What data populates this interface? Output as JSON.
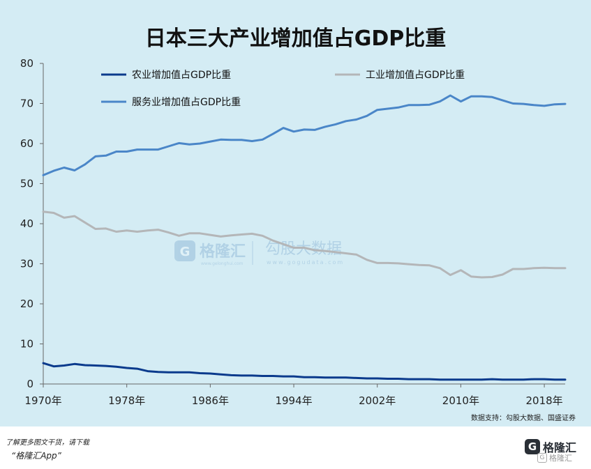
{
  "chart_data": {
    "type": "line",
    "title": "日本三大产业增加值占GDP比重",
    "x": [
      1970,
      1971,
      1972,
      1973,
      1974,
      1975,
      1976,
      1977,
      1978,
      1979,
      1980,
      1981,
      1982,
      1983,
      1984,
      1985,
      1986,
      1987,
      1988,
      1989,
      1990,
      1991,
      1992,
      1993,
      1994,
      1995,
      1996,
      1997,
      1998,
      1999,
      2000,
      2001,
      2002,
      2003,
      2004,
      2005,
      2006,
      2007,
      2008,
      2009,
      2010,
      2011,
      2012,
      2013,
      2014,
      2015,
      2016,
      2017,
      2018,
      2019,
      2020
    ],
    "x_ticks": [
      1970,
      1978,
      1986,
      1994,
      2002,
      2010,
      2018
    ],
    "x_tick_labels": [
      "1970年",
      "1978年",
      "1986年",
      "1994年",
      "2002年",
      "2010年",
      "2018年"
    ],
    "y_ticks": [
      0,
      10,
      20,
      30,
      40,
      50,
      60,
      70,
      80
    ],
    "ylim": [
      0,
      80
    ],
    "xlim": [
      1970,
      2020
    ],
    "xlabel": "",
    "ylabel": "",
    "grid": false,
    "legend_placement": "top-left",
    "series": [
      {
        "name": "农业增加值占GDP比重",
        "color": "#0a3a8c",
        "values": [
          5.2,
          4.4,
          4.6,
          5.0,
          4.7,
          4.6,
          4.5,
          4.3,
          4.0,
          3.8,
          3.2,
          3.0,
          2.9,
          2.9,
          2.9,
          2.7,
          2.6,
          2.4,
          2.2,
          2.1,
          2.1,
          2.0,
          2.0,
          1.9,
          1.9,
          1.7,
          1.7,
          1.6,
          1.6,
          1.6,
          1.5,
          1.4,
          1.4,
          1.3,
          1.3,
          1.2,
          1.2,
          1.2,
          1.1,
          1.1,
          1.1,
          1.1,
          1.1,
          1.2,
          1.1,
          1.1,
          1.1,
          1.2,
          1.2,
          1.1,
          1.1
        ]
      },
      {
        "name": "工业增加值占GDP比重",
        "color": "#b4b6b8",
        "values": [
          43.0,
          42.7,
          41.5,
          41.9,
          40.3,
          38.7,
          38.8,
          38.0,
          38.3,
          38.0,
          38.3,
          38.5,
          37.8,
          37.0,
          37.6,
          37.6,
          37.2,
          36.8,
          37.1,
          37.3,
          37.5,
          37.0,
          35.8,
          34.9,
          34.0,
          34.0,
          33.4,
          33.2,
          32.9,
          32.6,
          32.3,
          31.0,
          30.2,
          30.2,
          30.1,
          29.9,
          29.7,
          29.6,
          28.9,
          27.2,
          28.4,
          26.8,
          26.6,
          26.7,
          27.3,
          28.7,
          28.7,
          28.9,
          29.0,
          28.9,
          28.9
        ]
      },
      {
        "name": "服务业增加值占GDP比重",
        "color": "#4a86c8",
        "values": [
          52.1,
          53.2,
          54.0,
          53.3,
          54.8,
          56.8,
          57.0,
          58.0,
          58.0,
          58.5,
          58.5,
          58.5,
          59.3,
          60.1,
          59.8,
          60.0,
          60.5,
          61.0,
          60.9,
          60.9,
          60.6,
          61.0,
          62.4,
          63.9,
          63.0,
          63.5,
          63.4,
          64.2,
          64.8,
          65.6,
          66.0,
          66.9,
          68.4,
          68.7,
          69.0,
          69.6,
          69.6,
          69.7,
          70.5,
          72.0,
          70.5,
          71.8,
          71.8,
          71.6,
          70.8,
          70.0,
          69.9,
          69.6,
          69.4,
          69.8,
          69.9
        ]
      }
    ]
  },
  "watermark": {
    "brand": "格隆汇",
    "brand_url": "www.gelonghui.com",
    "partner": "勾股大数据",
    "partner_url": "www.gogudata.com"
  },
  "source_note": "数据支持：勾股大数据、国盛证券",
  "footer": {
    "hint": "了解更多图文干货，请下载",
    "app": "“格隆汇App”",
    "logo_text": "格隆汇",
    "mark_text": "格隆汇"
  }
}
